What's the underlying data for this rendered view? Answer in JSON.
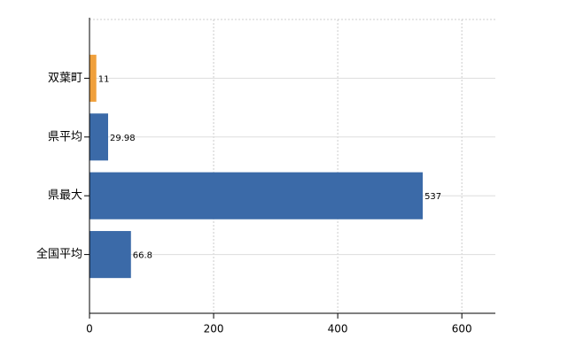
{
  "chart_data": {
    "type": "barh",
    "categories": [
      "双葉町",
      "県平均",
      "県最大",
      "全国平均"
    ],
    "values": [
      11,
      29.98,
      537,
      66.8
    ],
    "colors": [
      "#f0a03c",
      "#3b6aa8",
      "#3b6aa8",
      "#3b6aa8"
    ],
    "xlim": [
      0,
      654
    ],
    "xticks": [
      0,
      200,
      400,
      600
    ],
    "grid": true
  }
}
